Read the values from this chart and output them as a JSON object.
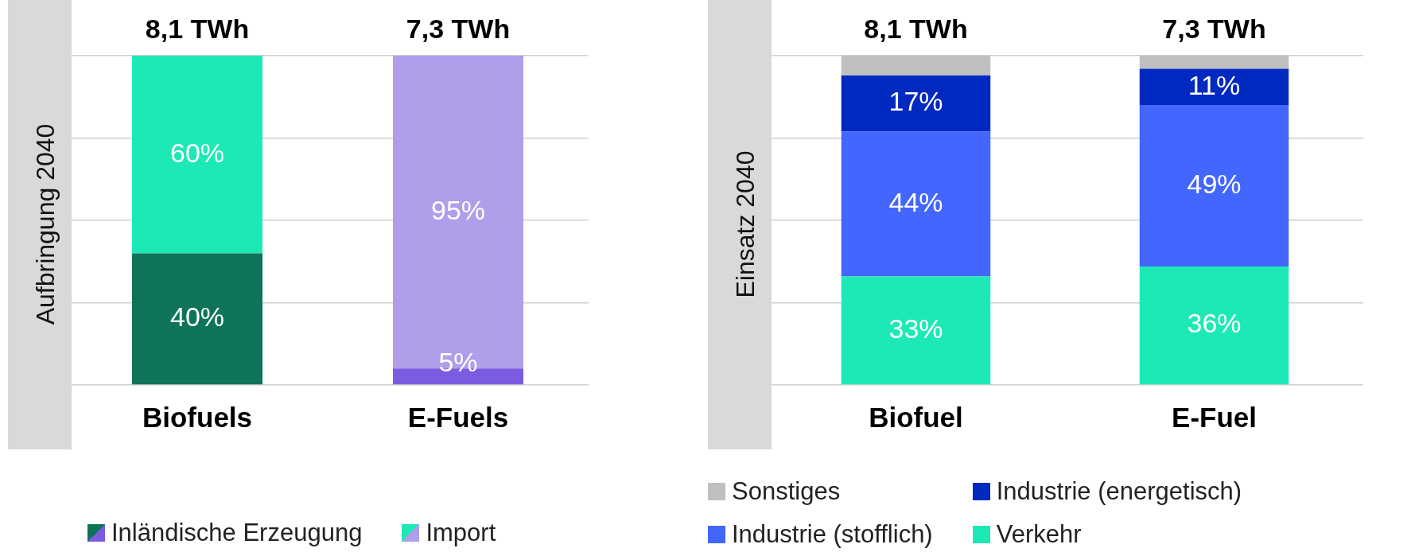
{
  "chart_data": [
    {
      "type": "bar",
      "ylabel": "Aufbringung 2040",
      "categories": [
        "Biofuels",
        "E-Fuels"
      ],
      "stacked": true,
      "tick_labels": "x",
      "grid": "y",
      "legend": "bottom",
      "annotations": [
        "8,1 TWh",
        "7,3 TWh"
      ],
      "series": [
        {
          "name": "Inländische Erzeugung",
          "colors": [
            "#0e7359",
            "#7b5be0"
          ],
          "values": [
            40,
            5
          ],
          "value_labels": [
            "40%",
            "5%"
          ]
        },
        {
          "name": "Import",
          "colors": [
            "#1de9b6",
            "#b09eeb"
          ],
          "values": [
            60,
            95
          ],
          "value_labels": [
            "60%",
            "95%"
          ]
        }
      ]
    },
    {
      "type": "bar",
      "ylabel": "Einsatz 2040",
      "categories": [
        "Biofuel",
        "E-Fuel"
      ],
      "stacked": true,
      "tick_labels": "x",
      "grid": "y",
      "legend": "bottom",
      "annotations": [
        "8,1 TWh",
        "7,3 TWh"
      ],
      "series": [
        {
          "name": "Verkehr",
          "color": "#1de9b6",
          "values": [
            33,
            36
          ],
          "value_labels": [
            "33%",
            "36%"
          ]
        },
        {
          "name": "Industrie (stofflich)",
          "color": "#4366ff",
          "values": [
            44,
            49
          ],
          "value_labels": [
            "44%",
            "49%"
          ]
        },
        {
          "name": "Industrie (energetisch)",
          "color": "#0029c0",
          "values": [
            17,
            11
          ],
          "value_labels": [
            "17%",
            "11%"
          ]
        },
        {
          "name": "Sonstiges",
          "color": "#c0c0c0",
          "values": [
            6,
            4
          ],
          "value_labels": [
            null,
            null
          ]
        }
      ]
    }
  ]
}
